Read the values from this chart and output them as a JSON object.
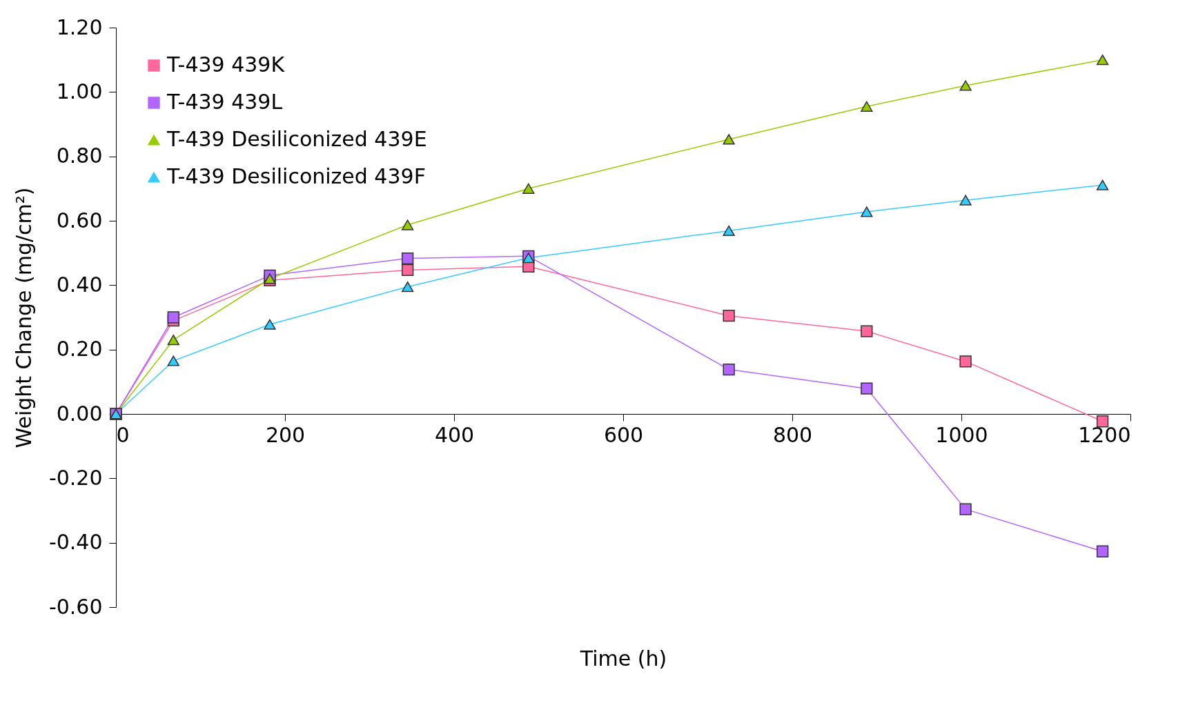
{
  "chart_data": {
    "type": "line",
    "xlabel": "Time (h)",
    "ylabel": "Weight Change (mg/cm²)",
    "x": [
      0,
      68,
      182,
      345,
      488,
      725,
      888,
      1005,
      1167
    ],
    "series": [
      {
        "name": "T-439 439K",
        "color": "#ff6699",
        "marker": "square",
        "values": [
          0,
          0.29,
          0.415,
          0.447,
          0.458,
          0.305,
          0.257,
          0.163,
          -0.023
        ]
      },
      {
        "name": "T-439 439L",
        "color": "#b266ff",
        "marker": "square",
        "values": [
          0,
          0.3,
          0.43,
          0.483,
          0.49,
          0.138,
          0.079,
          -0.296,
          -0.427
        ]
      },
      {
        "name": "T-439 Desiliconized 439E",
        "color": "#99cc00",
        "marker": "triangle",
        "values": [
          0,
          0.23,
          0.42,
          0.587,
          0.7,
          0.853,
          0.955,
          1.02,
          1.1
        ]
      },
      {
        "name": "T-439 Desiliconized 439F",
        "color": "#33ccff",
        "marker": "triangle",
        "values": [
          0,
          0.165,
          0.278,
          0.395,
          0.485,
          0.569,
          0.628,
          0.664,
          0.711
        ]
      }
    ],
    "xlim": [
      0,
      1200
    ],
    "xticks": [
      0,
      200,
      400,
      600,
      800,
      1000,
      1200
    ],
    "ylim": [
      -0.6,
      1.2
    ],
    "yticks": [
      {
        "value": -0.6,
        "label": "-0.60"
      },
      {
        "value": -0.4,
        "label": "-0.40"
      },
      {
        "value": -0.2,
        "label": "-0.20"
      },
      {
        "value": 0,
        "label": "0.00"
      },
      {
        "value": 0.2,
        "label": "0.20"
      },
      {
        "value": 0.4,
        "label": "0.40"
      },
      {
        "value": 0.6,
        "label": "0.60"
      },
      {
        "value": 0.8,
        "label": "0.80"
      },
      {
        "value": 1.0,
        "label": "1.00"
      },
      {
        "value": 1.2,
        "label": "1.20"
      }
    ],
    "grid": false,
    "legend": "top left"
  }
}
